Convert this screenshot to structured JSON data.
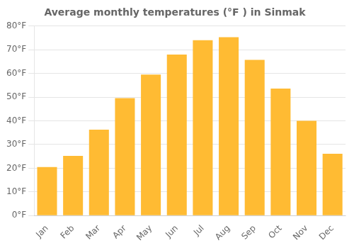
{
  "chart_data": {
    "type": "bar",
    "title": "Average monthly temperatures (°F ) in Sinmak",
    "categories": [
      "Jan",
      "Feb",
      "Mar",
      "Apr",
      "May",
      "Jun",
      "Jul",
      "Aug",
      "Sep",
      "Oct",
      "Nov",
      "Dec"
    ],
    "values": [
      20.5,
      25.2,
      36.3,
      49.6,
      59.5,
      68.0,
      74.0,
      75.3,
      65.7,
      53.6,
      40.0,
      26.1
    ],
    "color": "#FFBB33",
    "ylim": [
      0,
      80
    ],
    "yticks": [
      {
        "value": 0,
        "label": "0°F"
      },
      {
        "value": 10,
        "label": "10°F"
      },
      {
        "value": 20,
        "label": "20°F"
      },
      {
        "value": 30,
        "label": "30°F"
      },
      {
        "value": 40,
        "label": "40°F"
      },
      {
        "value": 50,
        "label": "50°F"
      },
      {
        "value": 60,
        "label": "60°F"
      },
      {
        "value": 70,
        "label": "70°F"
      },
      {
        "value": 80,
        "label": "80°F"
      }
    ],
    "grid": true
  }
}
